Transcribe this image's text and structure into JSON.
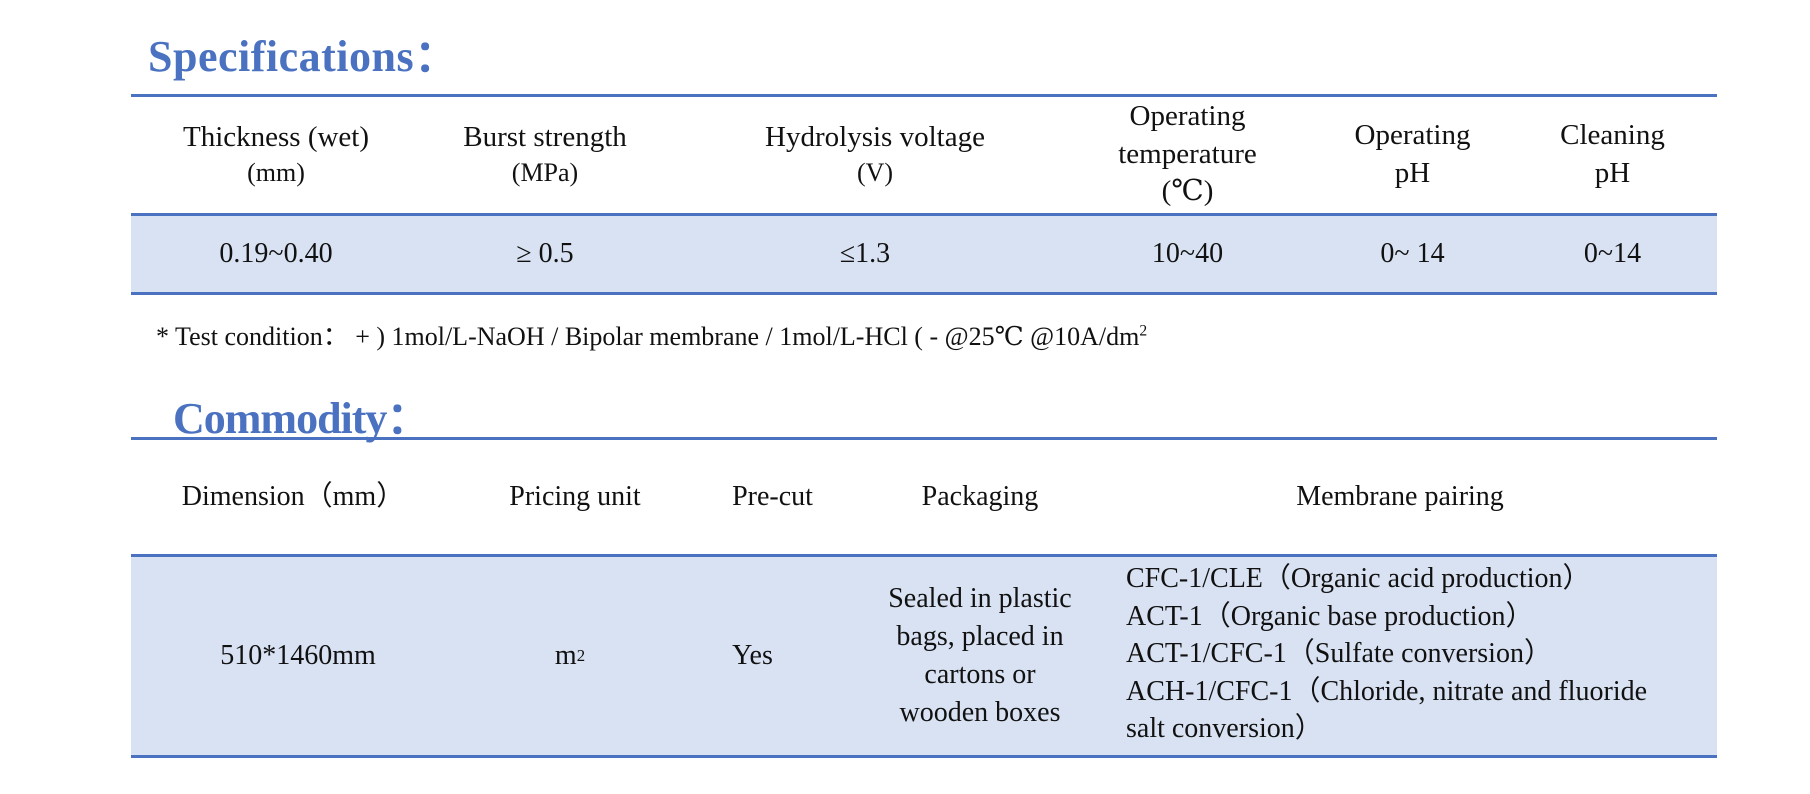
{
  "specifications": {
    "heading": "Specifications：",
    "columns": [
      {
        "line1": "Thickness (wet)",
        "line2": "(mm)"
      },
      {
        "line1": "Burst strength",
        "line2": "(MPa)"
      },
      {
        "line1": "Hydrolysis voltage",
        "line2": "(V)"
      },
      {
        "line1": "Operating",
        "line2": "temperature",
        "line3": "(℃)"
      },
      {
        "line1": "Operating",
        "line2": "pH"
      },
      {
        "line1": "Cleaning",
        "line2": "pH"
      }
    ],
    "values": [
      "0.19~0.40",
      "≥ 0.5",
      "≤1.3",
      "10~40",
      "0~ 14",
      "0~14"
    ],
    "test_condition": "* Test condition：  + )  1mol/L-NaOH / Bipolar membrane / 1mol/L-HCl ( -   @25℃   @10A/dm",
    "test_condition_sup": "2"
  },
  "commodity": {
    "heading": "Commodity：",
    "columns": [
      "Dimension（mm）",
      "Pricing unit",
      "Pre-cut",
      "Packaging",
      "Membrane pairing"
    ],
    "row": {
      "dimension": "510*1460mm",
      "pricing_unit": "m",
      "pricing_unit_sup": "2",
      "pre_cut": "Yes",
      "packaging": [
        "Sealed in plastic",
        "bags, placed in",
        "cartons or",
        "wooden boxes"
      ],
      "membrane_pairing": [
        "CFC-1/CLE（Organic acid production）",
        "ACT-1（Organic base production）",
        "ACT-1/CFC-1（Sulfate conversion）",
        "ACH-1/CFC-1（Chloride, nitrate and fluoride",
        "salt conversion）"
      ]
    }
  },
  "colors": {
    "accent": "#4a72c0",
    "band": "#d9e2f3"
  }
}
